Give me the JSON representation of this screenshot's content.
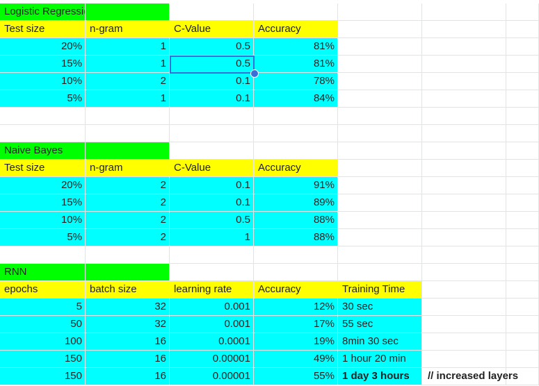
{
  "sheet": {
    "tables": [
      {
        "id": "logistic-regression",
        "title": "Logistic Regression",
        "headers": [
          "Test size",
          "n-gram",
          "C-Value",
          "Accuracy"
        ],
        "rows": [
          [
            "20%",
            "1",
            "0.5",
            "81%"
          ],
          [
            "15%",
            "1",
            "0.5",
            "81%"
          ],
          [
            "10%",
            "2",
            "0.1",
            "78%"
          ],
          [
            "5%",
            "1",
            "0.1",
            "84%"
          ]
        ]
      },
      {
        "id": "naive-bayes",
        "title": "Naive Bayes",
        "headers": [
          "Test size",
          "n-gram",
          "C-Value",
          "Accuracy"
        ],
        "rows": [
          [
            "20%",
            "2",
            "0.1",
            "91%"
          ],
          [
            "15%",
            "2",
            "0.1",
            "89%"
          ],
          [
            "10%",
            "2",
            "0.5",
            "88%"
          ],
          [
            "5%",
            "2",
            "1",
            "88%"
          ]
        ]
      },
      {
        "id": "rnn",
        "title": "RNN",
        "headers": [
          "epochs",
          "batch size",
          "learning rate",
          "Accuracy",
          "Training Time"
        ],
        "rows": [
          [
            "5",
            "32",
            "0.001",
            "12%",
            "30 sec"
          ],
          [
            "50",
            "32",
            "0.001",
            "17%",
            "55 sec"
          ],
          [
            "100",
            "16",
            "0.0001",
            "19%",
            "8min 30 sec"
          ],
          [
            "150",
            "16",
            "0.00001",
            "49%",
            "1 hour 20 min"
          ],
          [
            "150",
            "16",
            "0.00001",
            "55%",
            "1 day 3 hours"
          ]
        ],
        "note": "// increased layers"
      }
    ],
    "selected_cell": "0.5",
    "colors": {
      "title_fill": "#00ff00",
      "header_fill": "#ffff00",
      "data_fill": "#00ffff",
      "selection": "#3b6fd8",
      "gridline": "#e2e3e3"
    }
  }
}
